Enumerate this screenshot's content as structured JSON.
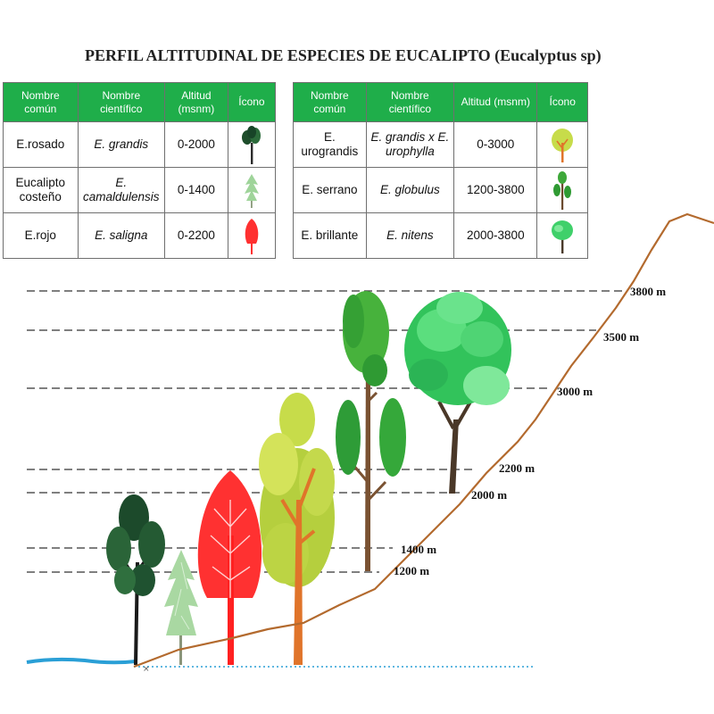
{
  "title": "PERFIL ALTITUDINAL DE ESPECIES DE EUCALIPTO (Eucalyptus sp)",
  "headers": {
    "common": "Nombre común",
    "scientific": "Nombre científico",
    "altitude": "Altitud (msnm)",
    "icon": "Ícono"
  },
  "table_left": [
    {
      "common": "E.rosado",
      "scientific": "E. grandis",
      "altitude": "0-2000",
      "icon": "dark-green-tree-icon"
    },
    {
      "common": "Eucalipto costeño",
      "scientific": "E. camaldulensis",
      "altitude": "0-1400",
      "icon": "light-green-pine-icon"
    },
    {
      "common": "E.rojo",
      "scientific": "E. saligna",
      "altitude": "0-2200",
      "icon": "red-tree-icon"
    }
  ],
  "table_right": [
    {
      "common": "E. urograndis",
      "scientific": "E. grandis x E. urophylla",
      "altitude": "0-3000",
      "icon": "yellow-green-tree-icon"
    },
    {
      "common": "E. serrano",
      "scientific": "E. globulus",
      "altitude": "1200-3800",
      "icon": "tall-green-tree-icon"
    },
    {
      "common": "E. brillante",
      "scientific": "E. nitens",
      "altitude": "2000-3800",
      "icon": "round-green-tree-icon"
    }
  ],
  "altitude_marks": [
    "3800 m",
    "3500 m",
    "3000 m",
    "2200 m",
    "2000 m",
    "1400 m",
    "1200 m"
  ],
  "colors": {
    "header_green": "#1fae4a",
    "slope_brown": "#b36a2e",
    "water_blue": "#2a9fd6",
    "red_tree": "#ff2020"
  }
}
